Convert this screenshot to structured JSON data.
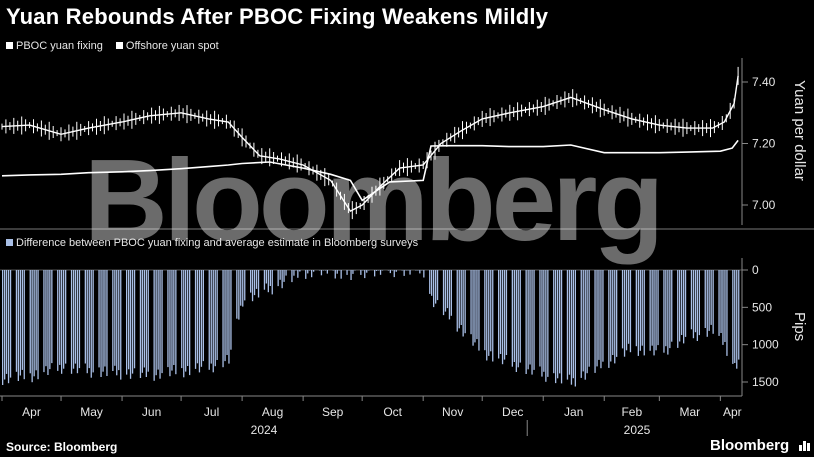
{
  "title": "Yuan Rebounds After PBOC Fixing Weakens Mildly",
  "source": "Source: Bloomberg",
  "brand": "Bloomberg",
  "watermark": "Bloomberg",
  "colors": {
    "background": "#000000",
    "line": "#ffffff",
    "bars": "#a9bfe6",
    "text": "#e6e6e6"
  },
  "chart_data": [
    {
      "type": "line",
      "legend": [
        "PBOC yuan fixing",
        "Offshore yuan spot"
      ],
      "ylabel": "Yuan per dollar",
      "yticks": [
        "7.40",
        "7.20",
        "7.00"
      ],
      "ylim": [
        6.94,
        7.45
      ],
      "x_start": "2024-04-01",
      "series": [
        {
          "name": "PBOC yuan fixing",
          "dates": [
            "2024-04-01",
            "2024-04-15",
            "2024-05-01",
            "2024-05-15",
            "2024-06-01",
            "2024-06-15",
            "2024-07-01",
            "2024-07-15",
            "2024-07-25",
            "2024-08-01",
            "2024-08-15",
            "2024-09-01",
            "2024-09-15",
            "2024-09-25",
            "2024-10-01",
            "2024-10-15",
            "2024-11-01",
            "2024-11-05",
            "2024-11-15",
            "2024-12-01",
            "2024-12-15",
            "2025-01-01",
            "2025-01-15",
            "2025-02-01",
            "2025-02-15",
            "2025-03-01",
            "2025-03-15",
            "2025-04-01",
            "2025-04-07",
            "2025-04-10"
          ],
          "values": [
            7.095,
            7.098,
            7.1,
            7.105,
            7.108,
            7.112,
            7.118,
            7.125,
            7.13,
            7.135,
            7.14,
            7.12,
            7.1,
            7.08,
            7.015,
            7.075,
            7.08,
            7.192,
            7.193,
            7.193,
            7.19,
            7.19,
            7.195,
            7.17,
            7.17,
            7.17,
            7.172,
            7.175,
            7.185,
            7.21
          ]
        },
        {
          "name": "Offshore yuan spot",
          "dates": [
            "2024-04-01",
            "2024-04-15",
            "2024-05-01",
            "2024-05-15",
            "2024-06-01",
            "2024-06-15",
            "2024-07-01",
            "2024-07-15",
            "2024-07-25",
            "2024-08-01",
            "2024-08-10",
            "2024-08-20",
            "2024-09-01",
            "2024-09-15",
            "2024-09-25",
            "2024-10-01",
            "2024-10-10",
            "2024-10-20",
            "2024-11-01",
            "2024-11-10",
            "2024-11-20",
            "2024-12-01",
            "2024-12-15",
            "2025-01-01",
            "2025-01-15",
            "2025-02-01",
            "2025-02-15",
            "2025-03-01",
            "2025-03-15",
            "2025-03-28",
            "2025-04-03",
            "2025-04-08",
            "2025-04-10"
          ],
          "values": [
            7.255,
            7.26,
            7.23,
            7.25,
            7.27,
            7.29,
            7.3,
            7.28,
            7.27,
            7.22,
            7.16,
            7.15,
            7.13,
            7.08,
            6.98,
            7.0,
            7.06,
            7.12,
            7.13,
            7.2,
            7.24,
            7.28,
            7.3,
            7.32,
            7.35,
            7.31,
            7.28,
            7.26,
            7.25,
            7.25,
            7.27,
            7.33,
            7.42
          ]
        }
      ]
    },
    {
      "type": "bar",
      "legend": [
        "Difference between PBOC yuan fixing and average estimate in Bloomberg surveys"
      ],
      "ylabel": "Pips",
      "yticks": [
        "0",
        "500",
        "1000",
        "1500"
      ],
      "ylim": [
        -1650,
        0
      ],
      "series": [
        {
          "name": "Difference between PBOC yuan fixing and average estimate in Bloomberg surveys",
          "dates": [
            "2024-04-01",
            "2024-04-15",
            "2024-05-01",
            "2024-05-15",
            "2024-06-01",
            "2024-06-15",
            "2024-07-01",
            "2024-07-15",
            "2024-07-25",
            "2024-08-01",
            "2024-08-15",
            "2024-09-01",
            "2024-09-15",
            "2024-09-25",
            "2024-10-01",
            "2024-10-15",
            "2024-11-01",
            "2024-11-05",
            "2024-11-15",
            "2024-12-01",
            "2024-12-15",
            "2025-01-01",
            "2025-01-15",
            "2025-02-01",
            "2025-02-15",
            "2025-03-01",
            "2025-03-15",
            "2025-03-28",
            "2025-04-03",
            "2025-04-08",
            "2025-04-10"
          ],
          "values": [
            -1450,
            -1420,
            -1300,
            -1350,
            -1380,
            -1400,
            -1350,
            -1300,
            -1200,
            -400,
            -250,
            -30,
            -10,
            -80,
            -20,
            -5,
            -10,
            -400,
            -650,
            -1100,
            -1250,
            -1400,
            -1500,
            -1250,
            -1050,
            -1100,
            -900,
            -800,
            -1000,
            -1300,
            -1200
          ]
        }
      ]
    }
  ],
  "x_axis": {
    "months": [
      "Apr",
      "May",
      "Jun",
      "Jul",
      "Aug",
      "Sep",
      "Oct",
      "Nov",
      "Dec",
      "Jan",
      "Feb",
      "Mar",
      "Apr"
    ],
    "years": [
      "2024",
      "2025"
    ]
  }
}
